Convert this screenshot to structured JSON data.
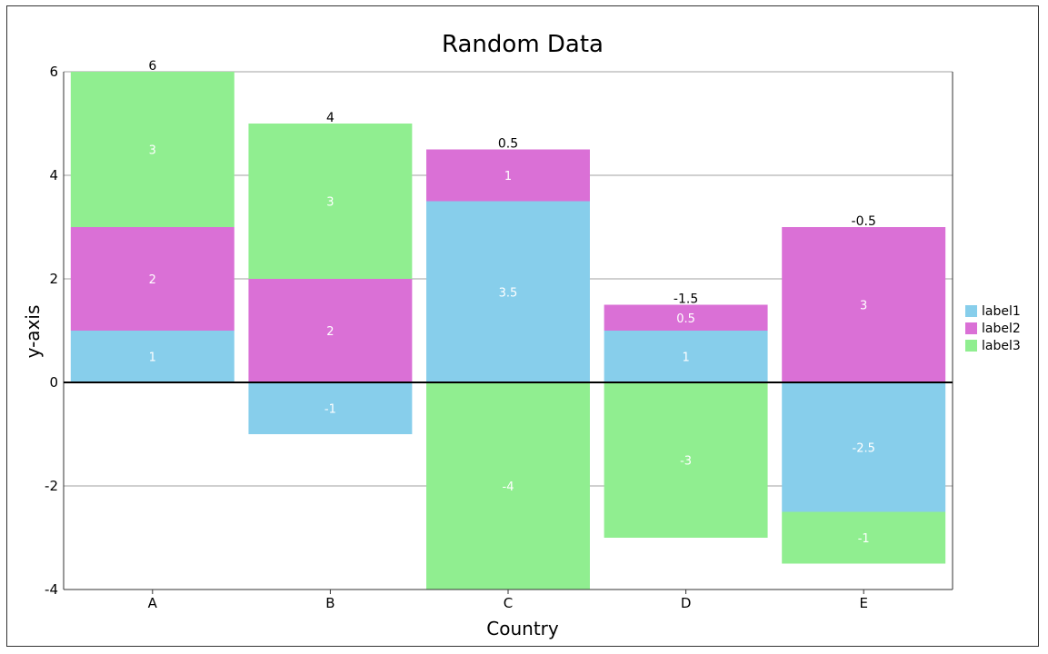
{
  "chart_data": {
    "type": "bar",
    "stacked": true,
    "title": "Random Data",
    "xlabel": "Country",
    "ylabel": "y-axis",
    "categories": [
      "A",
      "B",
      "C",
      "D",
      "E"
    ],
    "ylim": [
      -4,
      6
    ],
    "yticks": [
      "6",
      "4",
      "2",
      "0",
      "-2",
      "-4"
    ],
    "ytick_values": [
      6,
      4,
      2,
      0,
      -2,
      -4
    ],
    "grid": true,
    "legend_position": "right",
    "series": [
      {
        "name": "label1",
        "color": "#87CEEB",
        "values": [
          1,
          -1,
          3.5,
          1,
          -2.5
        ],
        "labels": [
          "1",
          "-1",
          "3.5",
          "1",
          "-2.5"
        ]
      },
      {
        "name": "label2",
        "color": "#DA70D6",
        "values": [
          2,
          2,
          1,
          0.5,
          3
        ],
        "labels": [
          "2",
          "2",
          "1",
          "0.5",
          "3"
        ]
      },
      {
        "name": "label3",
        "color": "#90EE90",
        "values": [
          3,
          3,
          -4,
          -3,
          -1
        ],
        "labels": [
          "3",
          "3",
          "-4",
          "-3",
          "-1"
        ]
      }
    ],
    "totals": [
      6,
      4,
      0.5,
      -1.5,
      -0.5
    ],
    "total_labels": [
      "6",
      "4",
      "0.5",
      "-1.5",
      "-0.5"
    ]
  }
}
